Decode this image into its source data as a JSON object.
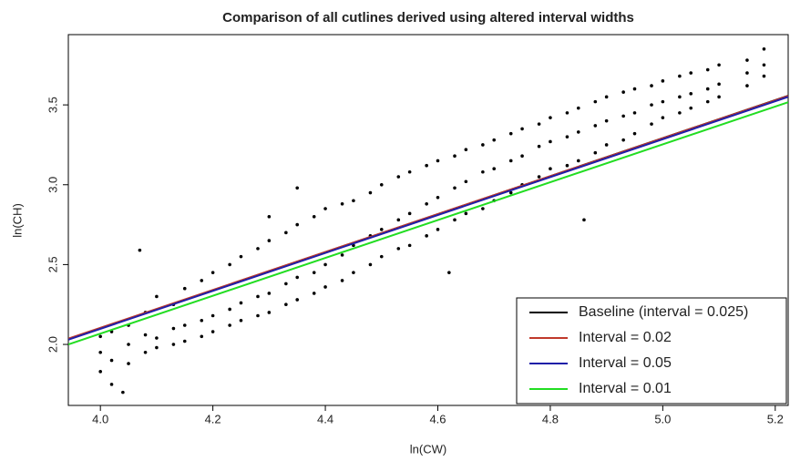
{
  "chart_data": {
    "type": "scatter",
    "title": "Comparison of all cutlines derived using altered interval widths",
    "x_label": "ln(CW)",
    "y_label": "ln(CH)",
    "xlim": [
      3.943,
      5.223
    ],
    "ylim": [
      1.618,
      3.94
    ],
    "xticks": [
      {
        "value": 4,
        "label": "4.0"
      },
      4.2,
      4.4,
      4.6,
      4.8,
      {
        "value": 5,
        "label": "5.0"
      },
      5.2
    ],
    "yticks": [
      {
        "value": 2,
        "label": "2.0"
      },
      2.5,
      {
        "value": 3,
        "label": "3.0"
      },
      3.5
    ],
    "legend_position": "bottom-right",
    "points": {
      "color": "#000000",
      "x": [
        4.0,
        4.0,
        4.0,
        4.02,
        4.02,
        4.02,
        4.05,
        4.05,
        4.05,
        4.08,
        4.08,
        4.08,
        4.1,
        4.1,
        4.1,
        4.13,
        4.13,
        4.13,
        4.15,
        4.15,
        4.15,
        4.18,
        4.18,
        4.18,
        4.2,
        4.2,
        4.2,
        4.23,
        4.23,
        4.23,
        4.25,
        4.25,
        4.25,
        4.28,
        4.28,
        4.28,
        4.3,
        4.3,
        4.3,
        4.33,
        4.33,
        4.33,
        4.35,
        4.35,
        4.35,
        4.38,
        4.38,
        4.38,
        4.4,
        4.4,
        4.4,
        4.43,
        4.43,
        4.43,
        4.45,
        4.45,
        4.45,
        4.48,
        4.48,
        4.48,
        4.5,
        4.5,
        4.5,
        4.53,
        4.53,
        4.53,
        4.55,
        4.55,
        4.55,
        4.58,
        4.58,
        4.58,
        4.6,
        4.6,
        4.6,
        4.63,
        4.63,
        4.63,
        4.65,
        4.65,
        4.65,
        4.68,
        4.68,
        4.68,
        4.7,
        4.7,
        4.7,
        4.73,
        4.73,
        4.73,
        4.75,
        4.75,
        4.75,
        4.78,
        4.78,
        4.78,
        4.8,
        4.8,
        4.8,
        4.83,
        4.83,
        4.83,
        4.85,
        4.85,
        4.85,
        4.88,
        4.88,
        4.88,
        4.9,
        4.9,
        4.9,
        4.93,
        4.93,
        4.93,
        4.95,
        4.95,
        4.95,
        4.98,
        4.98,
        4.98,
        5.0,
        5.0,
        5.0,
        5.03,
        5.03,
        5.03,
        5.05,
        5.05,
        5.05,
        5.08,
        5.08,
        5.08,
        5.1,
        5.1,
        5.1,
        5.15,
        5.15,
        5.15,
        5.18,
        5.18,
        5.18,
        4.07,
        4.04,
        4.35,
        4.3,
        4.62,
        4.86
      ],
      "y": [
        1.83,
        1.95,
        2.05,
        1.75,
        1.9,
        2.08,
        1.88,
        2.0,
        2.12,
        1.95,
        2.06,
        2.2,
        1.98,
        2.04,
        2.3,
        2.0,
        2.1,
        2.25,
        2.02,
        2.12,
        2.35,
        2.05,
        2.15,
        2.4,
        2.08,
        2.18,
        2.45,
        2.12,
        2.22,
        2.5,
        2.15,
        2.26,
        2.55,
        2.18,
        2.3,
        2.6,
        2.2,
        2.32,
        2.65,
        2.25,
        2.38,
        2.7,
        2.28,
        2.42,
        2.75,
        2.32,
        2.45,
        2.8,
        2.36,
        2.5,
        2.85,
        2.4,
        2.56,
        2.88,
        2.45,
        2.62,
        2.9,
        2.5,
        2.68,
        2.95,
        2.55,
        2.72,
        3.0,
        2.6,
        2.78,
        3.05,
        2.62,
        2.82,
        3.08,
        2.68,
        2.88,
        3.12,
        2.72,
        2.92,
        3.15,
        2.78,
        2.98,
        3.18,
        2.82,
        3.02,
        3.22,
        2.85,
        3.08,
        3.25,
        2.9,
        3.1,
        3.28,
        2.95,
        3.15,
        3.32,
        3.0,
        3.18,
        3.35,
        3.05,
        3.24,
        3.38,
        3.1,
        3.27,
        3.42,
        3.12,
        3.3,
        3.45,
        3.15,
        3.33,
        3.48,
        3.2,
        3.37,
        3.52,
        3.25,
        3.4,
        3.55,
        3.28,
        3.43,
        3.58,
        3.32,
        3.45,
        3.6,
        3.38,
        3.5,
        3.62,
        3.42,
        3.52,
        3.65,
        3.45,
        3.55,
        3.68,
        3.48,
        3.57,
        3.7,
        3.52,
        3.6,
        3.72,
        3.55,
        3.63,
        3.75,
        3.62,
        3.7,
        3.78,
        3.68,
        3.75,
        3.85,
        2.59,
        1.7,
        2.98,
        2.8,
        2.45,
        2.78
      ]
    },
    "lines": [
      {
        "name": "Baseline (interval = 0.025)",
        "color": "#000000",
        "x": [
          3.943,
          5.223
        ],
        "values": [
          2.034,
          3.557
        ]
      },
      {
        "name": "Interval = 0.02",
        "color": "#c0392b",
        "x": [
          3.943,
          5.223
        ],
        "values": [
          2.036,
          3.556
        ]
      },
      {
        "name": "Interval = 0.05",
        "color": "#1f1fa8",
        "x": [
          3.943,
          5.223
        ],
        "values": [
          2.03,
          3.55
        ]
      },
      {
        "name": "Interval = 0.01",
        "color": "#22dd22",
        "x": [
          3.943,
          5.223
        ],
        "values": [
          2.0,
          3.517
        ]
      }
    ]
  }
}
